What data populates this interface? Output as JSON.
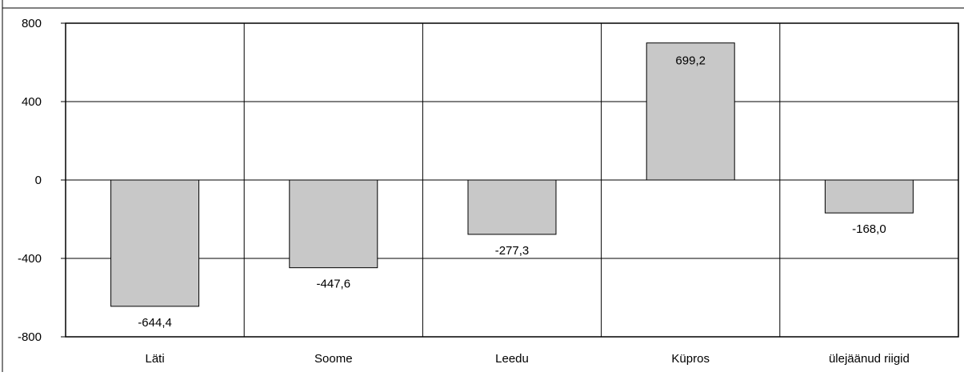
{
  "chart_data": {
    "type": "bar",
    "title": "",
    "xlabel": "",
    "ylabel": "",
    "categories": [
      "Läti",
      "Soome",
      "Leedu",
      "Küpros",
      "ülejäänud riigid"
    ],
    "values": [
      -644.4,
      -447.6,
      -277.3,
      699.2,
      -168.0
    ],
    "data_labels": [
      "-644,4",
      "-447,6",
      "-277,3",
      "699,2",
      "-168,0"
    ],
    "ylim": [
      -800,
      800
    ],
    "yticks": [
      800,
      400,
      0,
      -400,
      -800
    ],
    "ytick_labels": [
      "800",
      "400",
      "0",
      "-400",
      "-800"
    ],
    "grid": true,
    "legend": "none",
    "colors": {
      "bar_fill": "#c8c8c8",
      "bar_stroke": "#000000",
      "grid": "#000000"
    }
  }
}
